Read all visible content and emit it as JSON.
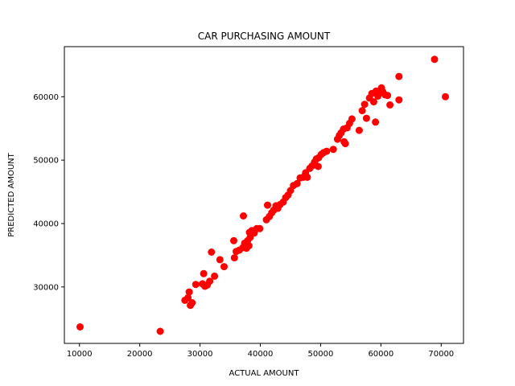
{
  "chart_data": {
    "type": "scatter",
    "title": "CAR PURCHASING AMOUNT",
    "xlabel": "ACTUAL AMOUNT",
    "ylabel": "PREDICTED AMOUNT",
    "xlim": [
      7500,
      73700
    ],
    "ylim": [
      21100,
      67900
    ],
    "xticks": [
      10000,
      20000,
      30000,
      40000,
      50000,
      60000,
      70000
    ],
    "xtick_labels": [
      "10000",
      "20000",
      "30000",
      "40000",
      "50000",
      "60000",
      "70000"
    ],
    "yticks": [
      30000,
      40000,
      50000,
      60000
    ],
    "ytick_labels": [
      "30000",
      "40000",
      "50000",
      "60000"
    ],
    "grid": false,
    "legend": "none",
    "marker_color": "#ff0000",
    "series": [
      {
        "points": [
          [
            10100,
            23700
          ],
          [
            23400,
            23000
          ],
          [
            27500,
            27900
          ],
          [
            28000,
            28300
          ],
          [
            28200,
            29200
          ],
          [
            28400,
            27100
          ],
          [
            28700,
            27500
          ],
          [
            29300,
            30400
          ],
          [
            30400,
            30500
          ],
          [
            30600,
            32100
          ],
          [
            30800,
            30100
          ],
          [
            31200,
            30300
          ],
          [
            31600,
            30900
          ],
          [
            31900,
            35500
          ],
          [
            32400,
            31700
          ],
          [
            33300,
            34300
          ],
          [
            34000,
            33200
          ],
          [
            35600,
            37300
          ],
          [
            35700,
            34600
          ],
          [
            36000,
            35600
          ],
          [
            36500,
            35800
          ],
          [
            37200,
            41200
          ],
          [
            37100,
            36200
          ],
          [
            37400,
            36900
          ],
          [
            37700,
            36100
          ],
          [
            37900,
            37300
          ],
          [
            38100,
            36500
          ],
          [
            38300,
            37800
          ],
          [
            38200,
            38600
          ],
          [
            38600,
            38900
          ],
          [
            39000,
            38500
          ],
          [
            39400,
            39200
          ],
          [
            39900,
            39200
          ],
          [
            41000,
            40600
          ],
          [
            41200,
            42900
          ],
          [
            41500,
            41100
          ],
          [
            41900,
            41700
          ],
          [
            42200,
            42100
          ],
          [
            42600,
            42800
          ],
          [
            42900,
            42400
          ],
          [
            43300,
            43000
          ],
          [
            43800,
            43400
          ],
          [
            44200,
            44100
          ],
          [
            44600,
            44500
          ],
          [
            45000,
            45200
          ],
          [
            45500,
            46000
          ],
          [
            46100,
            46300
          ],
          [
            46600,
            47200
          ],
          [
            47100,
            47300
          ],
          [
            47500,
            48000
          ],
          [
            47800,
            47300
          ],
          [
            48200,
            48700
          ],
          [
            48600,
            49100
          ],
          [
            49000,
            49700
          ],
          [
            49300,
            50200
          ],
          [
            49600,
            49000
          ],
          [
            49700,
            50400
          ],
          [
            50100,
            50900
          ],
          [
            50500,
            51200
          ],
          [
            51000,
            51400
          ],
          [
            52100,
            51700
          ],
          [
            52800,
            53300
          ],
          [
            53100,
            53900
          ],
          [
            53400,
            54300
          ],
          [
            53800,
            54900
          ],
          [
            53900,
            52900
          ],
          [
            54100,
            52600
          ],
          [
            54400,
            55100
          ],
          [
            54800,
            55800
          ],
          [
            55200,
            56500
          ],
          [
            56400,
            54700
          ],
          [
            56900,
            57800
          ],
          [
            57300,
            58800
          ],
          [
            57600,
            56600
          ],
          [
            58100,
            59800
          ],
          [
            58500,
            60500
          ],
          [
            58800,
            59200
          ],
          [
            59100,
            56000
          ],
          [
            59200,
            60900
          ],
          [
            59500,
            60100
          ],
          [
            59800,
            60600
          ],
          [
            60100,
            61400
          ],
          [
            60300,
            60800
          ],
          [
            60700,
            60300
          ],
          [
            61100,
            60200
          ],
          [
            61500,
            58700
          ],
          [
            63000,
            63200
          ],
          [
            63000,
            59500
          ],
          [
            68900,
            65900
          ],
          [
            70700,
            60000
          ]
        ]
      }
    ]
  }
}
